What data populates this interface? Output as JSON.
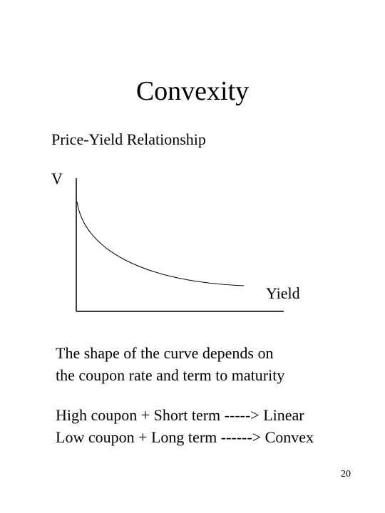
{
  "slide": {
    "title": "Convexity",
    "subtitle": "Price-Yield Relationship",
    "page_number": "20"
  },
  "graph": {
    "y_axis_label": "V",
    "x_axis_label": "Yield",
    "curve_shape": "convex, downward sloping"
  },
  "notes": {
    "paragraph1": [
      "The shape of the curve depends on",
      "the coupon rate and term to maturity"
    ],
    "paragraph2": [
      "High coupon + Short term -----> Linear",
      "Low coupon + Long term ------> Convex"
    ]
  }
}
